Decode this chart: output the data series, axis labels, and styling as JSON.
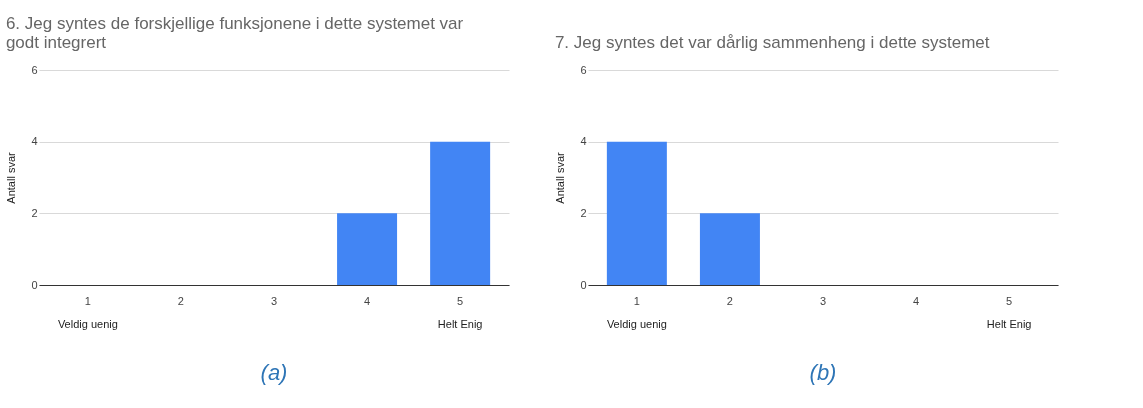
{
  "chart_data": [
    {
      "type": "bar",
      "title": "6. Jeg syntes de forskjellige funksjonene i dette systemet var godt integrert",
      "ylabel": "Antall svar",
      "categories": [
        "1",
        "2",
        "3",
        "4",
        "5"
      ],
      "values": [
        0,
        0,
        0,
        2,
        4
      ],
      "color": "#4285f4",
      "ylim": [
        0,
        6
      ],
      "yticks": [
        0,
        2,
        4,
        6
      ],
      "grid": "y",
      "annotations": [
        "Veldig uenig",
        "Helt Enig",
        "(a)"
      ]
    },
    {
      "type": "bar",
      "title": "7. Jeg syntes det var dårlig sammenheng i dette systemet",
      "ylabel": "Antall svar",
      "categories": [
        "1",
        "2",
        "3",
        "4",
        "5"
      ],
      "values": [
        4,
        2,
        0,
        0,
        0
      ],
      "color": "#4285f4",
      "ylim": [
        0,
        6
      ],
      "yticks": [
        0,
        2,
        4,
        6
      ],
      "grid": "y",
      "annotations": [
        "Veldig uenig",
        "Helt Enig",
        "(b)"
      ]
    }
  ]
}
